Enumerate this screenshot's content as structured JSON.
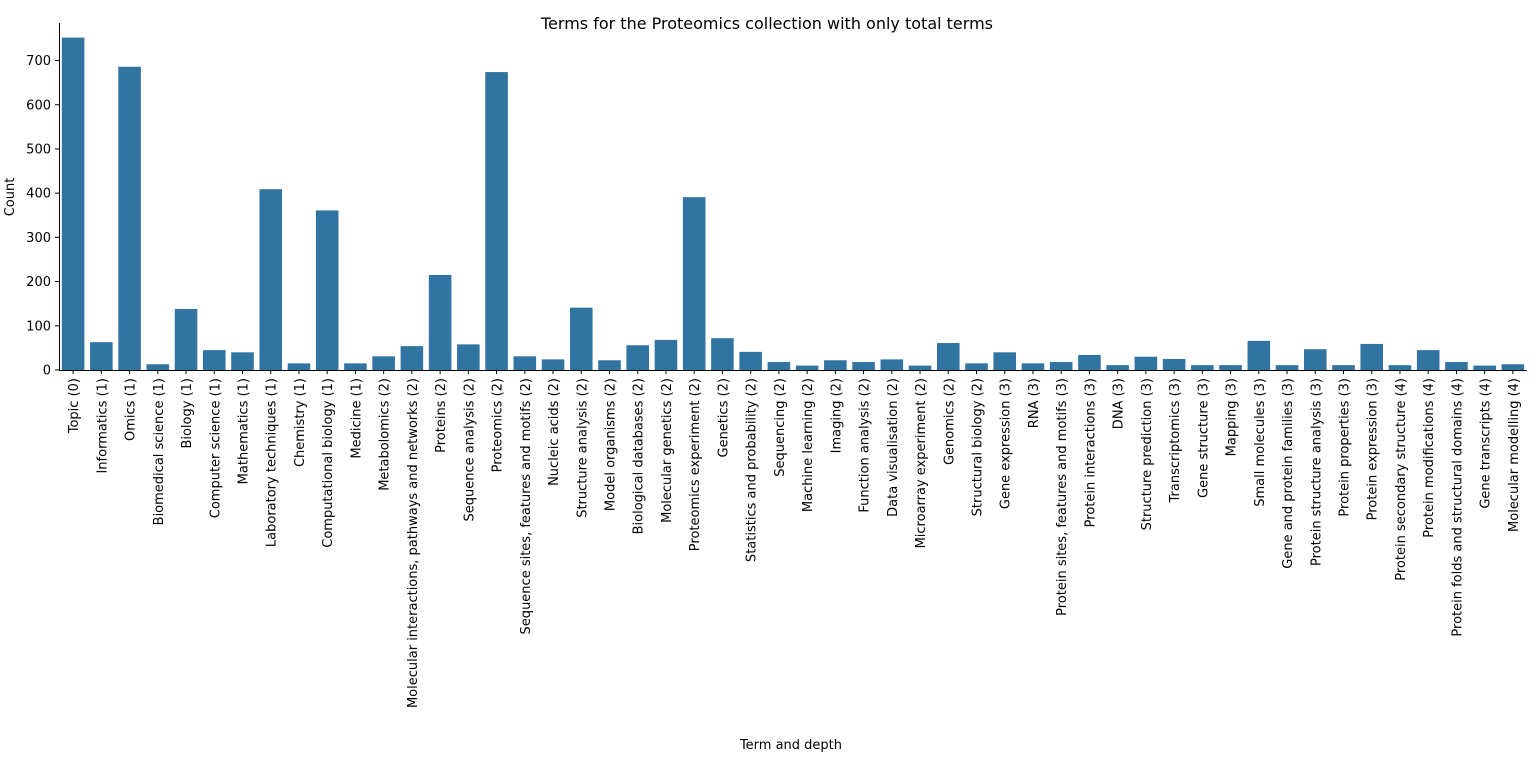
{
  "chart_data": {
    "type": "bar",
    "title": "Terms for the Proteomics collection with only total terms",
    "xlabel": "Term and depth",
    "ylabel": "Count",
    "ylim": [
      0,
      785
    ],
    "yticks": [
      0,
      100,
      200,
      300,
      400,
      500,
      600,
      700
    ],
    "grid": false,
    "bar_color": "#3274a1",
    "categories": [
      "Topic (0)",
      "Informatics (1)",
      "Omics (1)",
      "Biomedical science (1)",
      "Biology (1)",
      "Computer science (1)",
      "Mathematics (1)",
      "Laboratory techniques (1)",
      "Chemistry (1)",
      "Computational biology (1)",
      "Medicine (1)",
      "Metabolomics (2)",
      "Molecular interactions, pathways and networks (2)",
      "Proteins (2)",
      "Sequence analysis (2)",
      "Proteomics (2)",
      "Sequence sites, features and motifs (2)",
      "Nucleic acids (2)",
      "Structure analysis (2)",
      "Model organisms (2)",
      "Biological databases (2)",
      "Molecular genetics (2)",
      "Proteomics experiment (2)",
      "Genetics (2)",
      "Statistics and probability (2)",
      "Sequencing (2)",
      "Machine learning (2)",
      "Imaging (2)",
      "Function analysis (2)",
      "Data visualisation (2)",
      "Microarray experiment (2)",
      "Genomics (2)",
      "Structural biology (2)",
      "Gene expression (3)",
      "RNA (3)",
      "Protein sites, features and motifs (3)",
      "Protein interactions (3)",
      "DNA (3)",
      "Structure prediction (3)",
      "Transcriptomics (3)",
      "Gene structure (3)",
      "Mapping (3)",
      "Small molecules (3)",
      "Gene and protein families (3)",
      "Protein structure analysis (3)",
      "Protein properties (3)",
      "Protein expression (3)",
      "Protein secondary structure (4)",
      "Protein modifications (4)",
      "Protein folds and structural domains (4)",
      "Gene transcripts (4)",
      "Molecular modelling (4)"
    ],
    "values": [
      752,
      63,
      686,
      13,
      138,
      45,
      40,
      409,
      15,
      361,
      15,
      31,
      54,
      215,
      58,
      674,
      31,
      24,
      141,
      22,
      56,
      68,
      391,
      72,
      41,
      18,
      10,
      22,
      18,
      24,
      10,
      61,
      15,
      40,
      15,
      18,
      34,
      11,
      30,
      25,
      11,
      11,
      66,
      11,
      47,
      11,
      59,
      11,
      45,
      18,
      10,
      13
    ]
  }
}
